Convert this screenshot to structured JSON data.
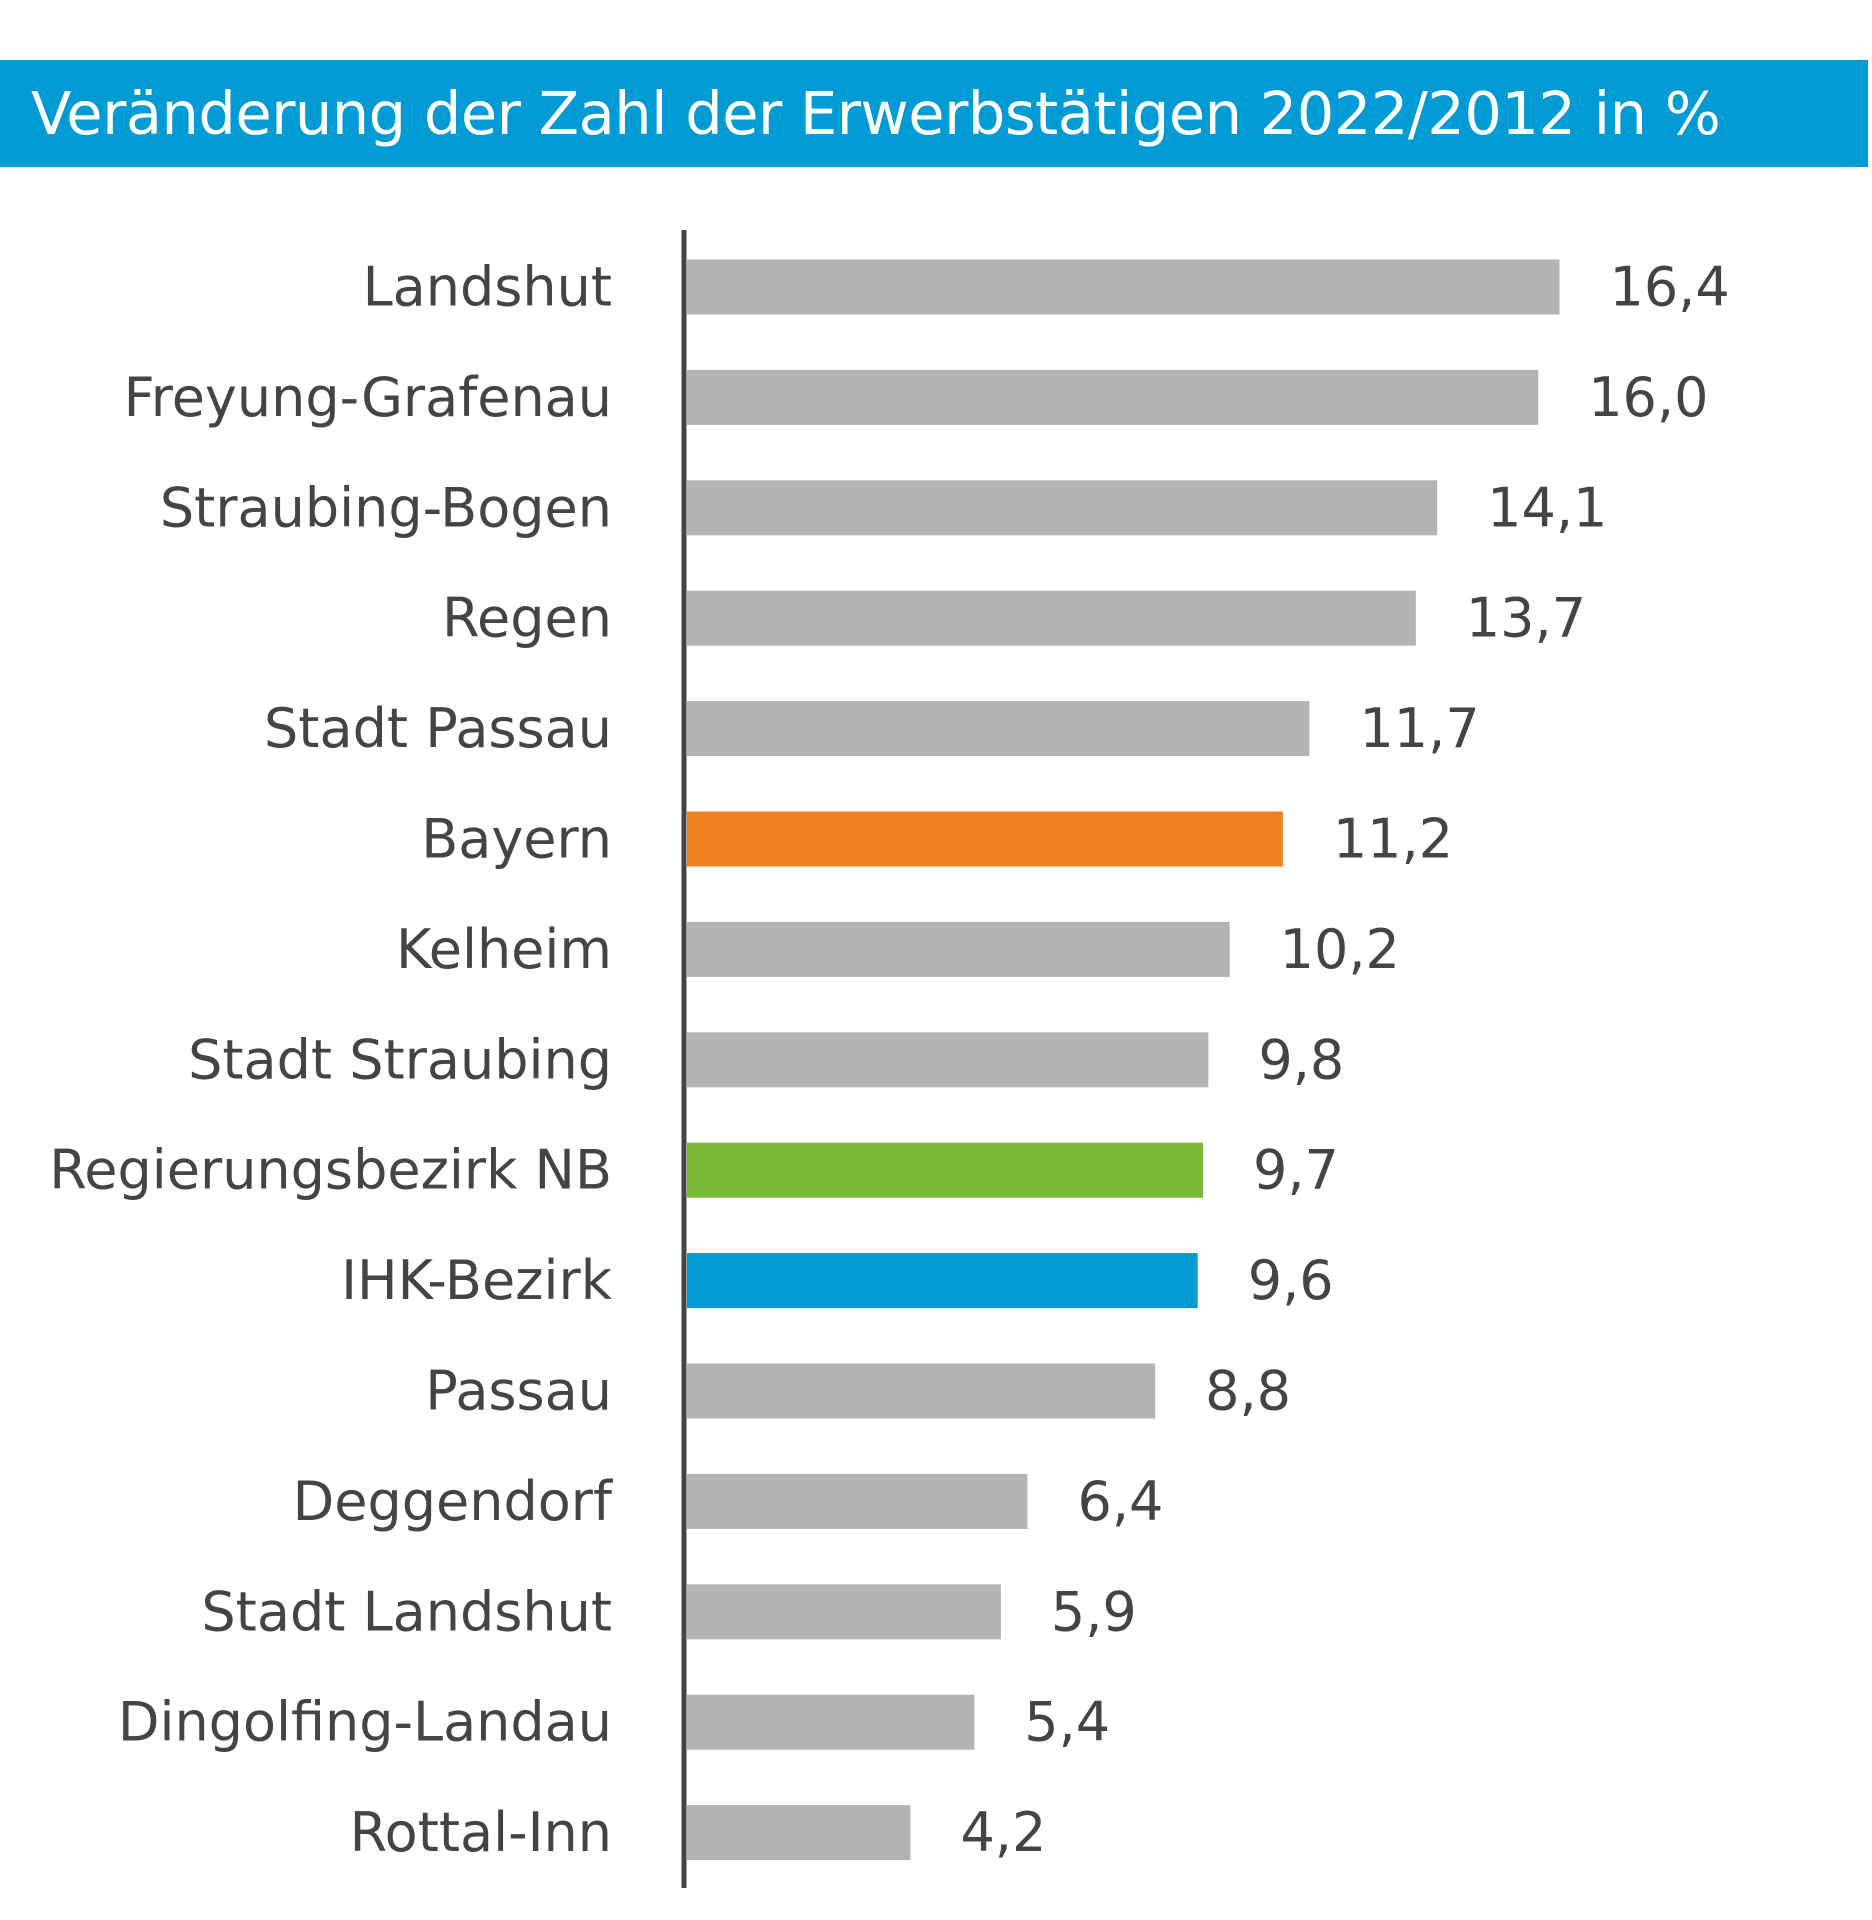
{
  "chart_data": {
    "type": "bar",
    "orientation": "horizontal",
    "title": "Veränderung der Zahl der Erwerbstätigen 2022/2012 in %",
    "xlabel": "",
    "ylabel": "",
    "xlim": [
      0,
      16.4
    ],
    "grid": false,
    "legend": "none",
    "categories": [
      "Landshut",
      "Freyung-Grafenau",
      "Straubing-Bogen",
      "Regen",
      "Stadt Passau",
      "Bayern",
      "Kelheim",
      "Stadt Straubing",
      "Regierungsbezirk NB",
      "IHK-Bezirk",
      "Passau",
      "Deggendorf",
      "Stadt Landshut",
      "Dingolfing-Landau",
      "Rottal-Inn"
    ],
    "values": [
      16.4,
      16.0,
      14.1,
      13.7,
      11.7,
      11.2,
      10.2,
      9.8,
      9.7,
      9.6,
      8.8,
      6.4,
      5.9,
      5.4,
      4.2
    ],
    "value_labels": [
      "16,4",
      "16,0",
      "14,1",
      "13,7",
      "11,7",
      "11,2",
      "10,2",
      "9,8",
      "9,7",
      "9,6",
      "8,8",
      "6,4",
      "5,9",
      "5,4",
      "4,2"
    ],
    "colors": [
      "#b3b3b3",
      "#b3b3b3",
      "#b3b3b3",
      "#b3b3b3",
      "#b3b3b3",
      "#ee8220",
      "#b3b3b3",
      "#b3b3b3",
      "#78b833",
      "#009bd5",
      "#b3b3b3",
      "#b3b3b3",
      "#b3b3b3",
      "#b3b3b3",
      "#b3b3b3"
    ],
    "colors_meaning": {
      "default": "#b3b3b3",
      "Bayern": "#ee8220",
      "Regierungsbezirk NB": "#78b833",
      "IHK-Bezirk": "#009bd5"
    },
    "title_bar_color": "#009bd5",
    "axis_color": "#444444",
    "text_color": "#444444"
  }
}
